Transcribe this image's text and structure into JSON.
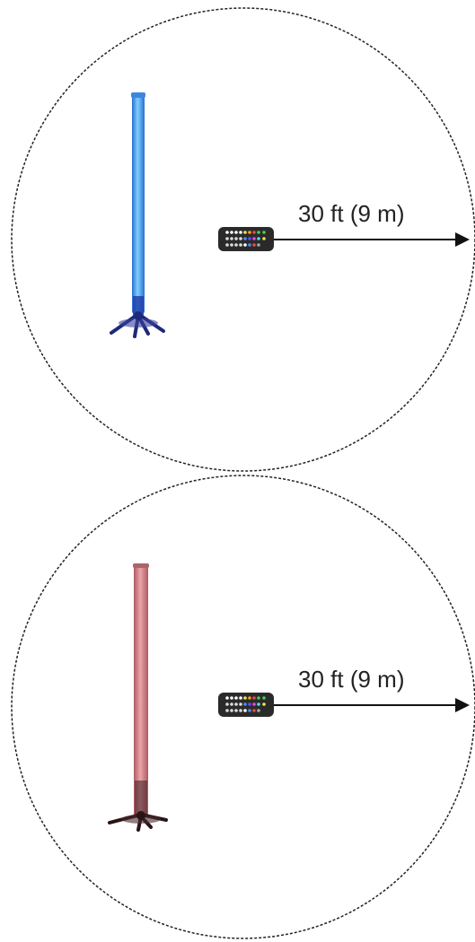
{
  "diagrams": [
    {
      "range_label": "30 ft (9 m)",
      "tube_color": "#4aa8f0",
      "tube_edge_color": "#2b6fd0",
      "base_color": "#1d2a7a"
    },
    {
      "range_label": "30 ft (9 m)",
      "tube_color": "#d98a8f",
      "tube_edge_color": "#b05a62",
      "base_color": "#2a1416"
    }
  ],
  "colors": {
    "boundary": "#222222",
    "arrow": "#111111",
    "remote_body": "#2a2a2a"
  },
  "icons": {
    "remote": "ir-remote-control-icon",
    "fixture": "led-tube-fixture-icon"
  }
}
